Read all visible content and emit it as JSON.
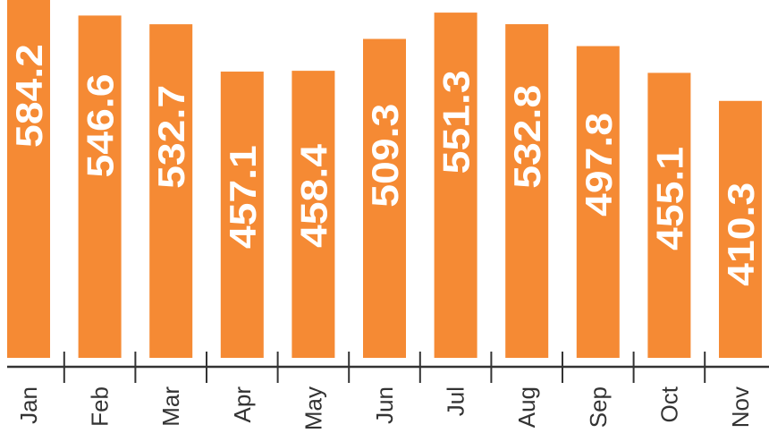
{
  "chart_data": {
    "type": "bar",
    "categories": [
      "Jan",
      "Feb",
      "Mar",
      "Apr",
      "May",
      "Jun",
      "Jul",
      "Aug",
      "Sep",
      "Oct",
      "Nov"
    ],
    "values": [
      584.2,
      546.6,
      532.7,
      457.1,
      458.4,
      509.3,
      551.3,
      532.8,
      497.8,
      455.1,
      410.3
    ],
    "data_labels": [
      "584.2",
      "546.6",
      "532.7",
      "457.1",
      "458.4",
      "509.3",
      "551.3",
      "532.8",
      "497.8",
      "455.1",
      "410.3"
    ],
    "title": "",
    "xlabel": "",
    "ylabel": "",
    "ylim": [
      0,
      584.2
    ],
    "grid": false,
    "bar_color": "#F58A34",
    "label_color": "#FFFFFF",
    "axis_color": "#333333"
  }
}
